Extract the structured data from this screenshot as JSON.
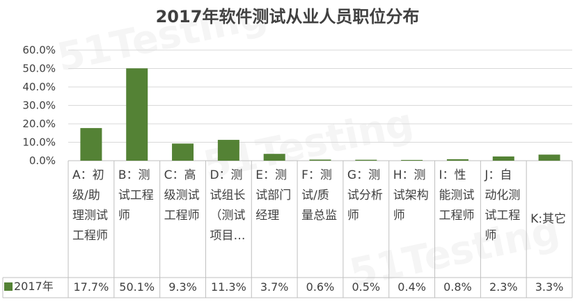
{
  "chart_data": {
    "type": "bar",
    "title": "2017年软件测试从业人员职位分布",
    "watermark": "51Testing",
    "categories": [
      "A：初级/助理测试工程师",
      "B：测试工程师",
      "C：高级测试工程师",
      "D：测试组长（测试项目…",
      "E：测试部门经理",
      "F：测试/质量总监",
      "G：测试分析师",
      "H：测试架构师",
      "I：性能测试工程师",
      "J：自动化测试工程师",
      "K:其它"
    ],
    "series": [
      {
        "name": "2017年",
        "values": [
          17.7,
          50.1,
          9.3,
          11.3,
          3.7,
          0.6,
          0.5,
          0.4,
          0.8,
          2.3,
          3.3
        ],
        "labels": [
          "17.7%",
          "50.1%",
          "9.3%",
          "11.3%",
          "3.7%",
          "0.6%",
          "0.5%",
          "0.4%",
          "0.8%",
          "2.3%",
          "3.3%"
        ],
        "color": "#548235"
      }
    ],
    "yticks": [
      "0.0%",
      "10.0%",
      "20.0%",
      "30.0%",
      "40.0%",
      "50.0%",
      "60.0%"
    ],
    "ylim": [
      0,
      60
    ],
    "grid": true,
    "data_table": true,
    "colors": {
      "grid": "#d9d9d9",
      "axis": "#bfbfbf",
      "text": "#404040",
      "bar": "#548235"
    }
  }
}
